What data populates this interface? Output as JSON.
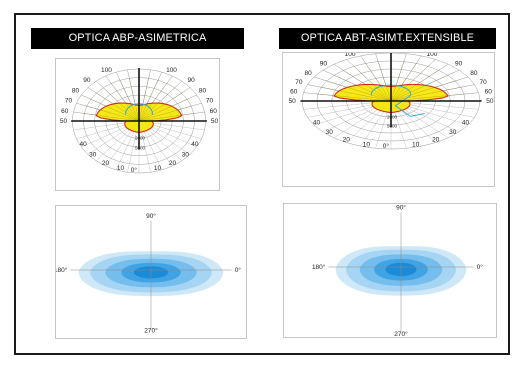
{
  "titles": {
    "left": "OPTICA ABP-ASIMETRICA",
    "right": "OPTICA ABT-ASIMT.EXTENSIBLE"
  },
  "polar": {
    "left_scale": [
      "100",
      "90",
      "80",
      "70",
      "60",
      "50",
      "40",
      "30",
      "20",
      "10",
      "0°"
    ],
    "right_scale": [
      "100",
      "90",
      "80",
      "70",
      "60",
      "50",
      "40",
      "30",
      "20",
      "10",
      "0°"
    ],
    "center_labels": [
      "2000",
      "5000"
    ]
  },
  "isolux": {
    "top": "90°",
    "left": "180°",
    "right": "0°",
    "bottom": "270°"
  },
  "colors": {
    "yellow": "#f5e600",
    "red_outline": "#d42a1e",
    "cyan_line": "#3aa6d8",
    "blue_1": "#cfe8f8",
    "blue_2": "#a6d5f3",
    "blue_3": "#74bdec",
    "blue_4": "#3fa3e4",
    "blue_5": "#1b8bd8"
  }
}
